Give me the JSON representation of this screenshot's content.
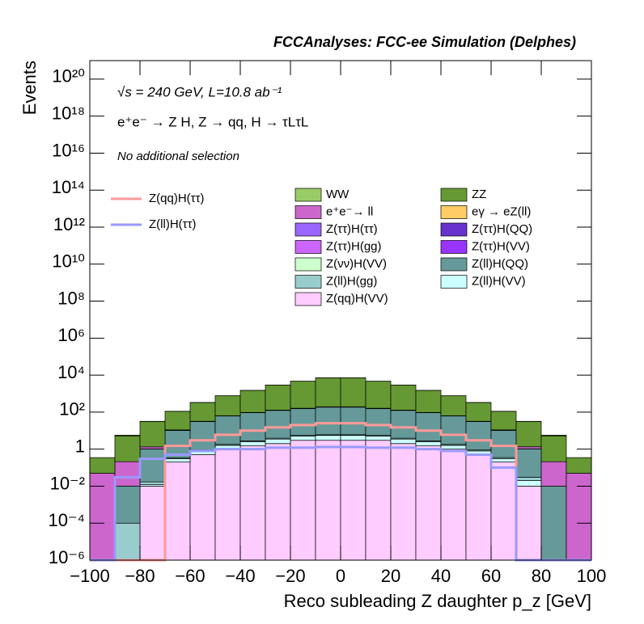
{
  "chart_data": {
    "type": "histogram",
    "stacked": true,
    "log_y": true,
    "header": "FCCAnalyses: FCC-ee Simulation (Delphes)",
    "annotations": [
      "√s = 240 GeV, L=10.8 ab⁻¹",
      "e⁺e⁻ → Z H, Z → qq, H → τLτL",
      "No additional selection"
    ],
    "xlabel": "Reco subleading Z daughter p_z [GeV]",
    "ylabel": "Events",
    "bins": [
      -100,
      -90,
      -80,
      -70,
      -60,
      -50,
      -40,
      -30,
      -20,
      -10,
      0,
      10,
      20,
      30,
      40,
      50,
      60,
      70,
      80,
      90,
      100
    ],
    "xlim": [
      -100,
      100
    ],
    "xticks": [
      {
        "value": -100,
        "label": "−100"
      },
      {
        "value": -80,
        "label": "−80"
      },
      {
        "value": -60,
        "label": "−60"
      },
      {
        "value": -40,
        "label": "−40"
      },
      {
        "value": -20,
        "label": "−20"
      },
      0,
      20,
      40,
      60,
      80,
      100
    ],
    "ylim": [
      1e-06,
      1e+21
    ],
    "yticks": [
      {
        "value": 1e-06,
        "label": "10⁻⁶"
      },
      {
        "value": 0.0001,
        "label": "10⁻⁴"
      },
      {
        "value": 0.01,
        "label": "10⁻²"
      },
      1,
      {
        "value": 100.0,
        "label": "10²"
      },
      {
        "value": 10000.0,
        "label": "10⁴"
      },
      {
        "value": 1000000.0,
        "label": "10⁶"
      },
      {
        "value": 100000000.0,
        "label": "10⁸"
      },
      {
        "value": 10000000000.0,
        "label": "10¹⁰"
      },
      {
        "value": 1000000000000.0,
        "label": "10¹²"
      },
      {
        "value": 100000000000000.0,
        "label": "10¹⁴"
      },
      {
        "value": 1e+16,
        "label": "10¹⁶"
      },
      {
        "value": 1e+18,
        "label": "10¹⁸"
      },
      {
        "value": 1e+20,
        "label": "10²⁰"
      }
    ],
    "series": [
      {
        "name": "WW",
        "color": "#99cc66",
        "values": [
          0,
          0.5,
          0.5,
          0.5,
          0.5,
          0.5,
          0.5,
          0.5,
          0.5,
          0.5,
          0.5,
          0.5,
          0.5,
          0.5,
          0.5,
          0.5,
          0.5,
          0.5,
          0.5,
          0
        ]
      },
      {
        "name": "ZZ",
        "color": "#669933",
        "values": [
          0.3,
          5,
          30,
          100,
          300,
          700,
          1400,
          2800,
          4500,
          7000,
          7000,
          4500,
          2800,
          1400,
          700,
          300,
          100,
          30,
          5,
          0.3
        ]
      },
      {
        "name": "e⁺e⁻→ ll",
        "color": "#cc66cc",
        "values": [
          0.05,
          0.2,
          0.3,
          0.3,
          0.4,
          0.5,
          0.8,
          1,
          1.5,
          2,
          2,
          1.5,
          1,
          0.8,
          0.5,
          0.4,
          0.3,
          0.3,
          0.2,
          0.05
        ]
      },
      {
        "name": "eγ → eZ(ll)",
        "color": "#ffcc66",
        "values": [
          0,
          0,
          0,
          0.05,
          0.1,
          0.2,
          0.3,
          0.4,
          0.5,
          0.5,
          0.5,
          0.5,
          0.4,
          0.3,
          0.2,
          0.1,
          0.05,
          0,
          0,
          0
        ]
      },
      {
        "name": "Z(ττ)H(ττ)",
        "color": "#9966ff",
        "values": [
          0,
          0,
          0,
          0.05,
          0.1,
          0.2,
          0.3,
          0.4,
          0.5,
          0.6,
          0.6,
          0.5,
          0.4,
          0.3,
          0.2,
          0.1,
          0.05,
          0,
          0,
          0
        ]
      },
      {
        "name": "Z(ττ)H(QQ)",
        "color": "#6633cc",
        "values": [
          0,
          0,
          1e-05,
          0.005,
          0.01,
          0.01,
          0.02,
          0.02,
          0.02,
          0.03,
          0.03,
          0.02,
          0.02,
          0.02,
          0.01,
          0.01,
          0.005,
          0.001,
          0,
          0
        ]
      },
      {
        "name": "Z(ττ)H(gg)",
        "color": "#cc66ff",
        "values": [
          0,
          0,
          0,
          0.005,
          0.008,
          0.01,
          0.01,
          0.012,
          0.012,
          0.012,
          0.012,
          0.012,
          0.01,
          0.01,
          0.008,
          0.005,
          0.003,
          0,
          0,
          0
        ]
      },
      {
        "name": "Z(ττ)H(VV)",
        "color": "#9933ff",
        "values": [
          0,
          0,
          0,
          0.02,
          0.05,
          0.08,
          0.1,
          0.15,
          0.2,
          0.2,
          0.2,
          0.2,
          0.15,
          0.1,
          0.08,
          0.05,
          0.02,
          0,
          0,
          0
        ]
      },
      {
        "name": "Z(νν)H(VV)",
        "color": "#ccffcc",
        "values": [
          0,
          0,
          0.01,
          0.2,
          0.5,
          1,
          2,
          3,
          4,
          5,
          5,
          4,
          3,
          2,
          1,
          0.5,
          0.2,
          0.01,
          0,
          0
        ]
      },
      {
        "name": "Z(ll)H(QQ)",
        "color": "#669999",
        "values": [
          0,
          0.01,
          1,
          10,
          30,
          60,
          90,
          120,
          150,
          180,
          180,
          150,
          120,
          90,
          60,
          30,
          10,
          1,
          0.01,
          0
        ]
      },
      {
        "name": "Z(ll)H(gg)",
        "color": "#99cccc",
        "values": [
          0,
          0.0001,
          0.005,
          0.03,
          0.1,
          0.2,
          0.3,
          0.4,
          0.5,
          0.5,
          0.5,
          0.5,
          0.4,
          0.3,
          0.2,
          0.1,
          0.05,
          0.01,
          0,
          0
        ]
      },
      {
        "name": "Z(ll)H(VV)",
        "color": "#ccffff",
        "values": [
          0,
          0,
          0.002,
          0.1,
          0.3,
          0.6,
          1,
          1.5,
          2,
          2.5,
          2.5,
          2,
          1.5,
          1,
          0.6,
          0.3,
          0.1,
          0.01,
          0,
          0
        ]
      },
      {
        "name": "Z(qq)H(VV)",
        "color": "#ffccff",
        "values": [
          0,
          0,
          0.01,
          0.2,
          0.5,
          1,
          1.5,
          2,
          3,
          3,
          3,
          3,
          2,
          1.5,
          1,
          0.5,
          0.2,
          0.01,
          0,
          0
        ]
      }
    ],
    "lines": [
      {
        "name": "Z(qq)H(ττ)",
        "color": "#ff9999",
        "values": [
          0,
          0,
          0,
          1.5,
          3,
          6,
          10,
          15,
          20,
          25,
          25,
          20,
          15,
          10,
          6,
          3,
          1.5,
          0,
          0,
          0
        ]
      },
      {
        "name": "Z(ll)H(ττ)",
        "color": "#9999ff",
        "values": [
          0,
          0.03,
          0.3,
          0.5,
          0.8,
          1,
          1,
          1.2,
          1.2,
          1.3,
          1.3,
          1.2,
          1.2,
          1,
          0.8,
          0.5,
          0.1,
          0,
          0,
          0
        ]
      }
    ]
  }
}
